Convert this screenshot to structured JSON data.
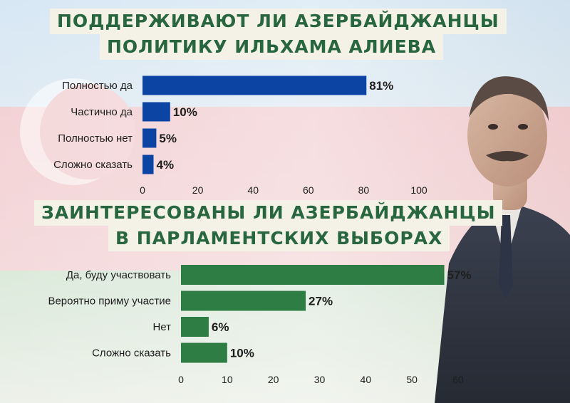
{
  "colors": {
    "blue_bar": "#0b44a3",
    "green_bar": "#2e7d44",
    "title_text": "#27663f"
  },
  "titles": [
    {
      "line1": "ПОДДЕРЖИВАЮТ ЛИ АЗЕРБАЙДЖАНЦЫ",
      "line2": "ПОЛИТИКУ ИЛЬХАМА АЛИЕВА"
    },
    {
      "line1": "ЗАИНТЕРЕСОВАНЫ ЛИ АЗЕРБАЙДЖАНЦЫ",
      "line2": "В ПАРЛАМЕНТСКИХ ВЫБОРАХ"
    }
  ],
  "chart_data": [
    {
      "type": "bar",
      "orientation": "horizontal",
      "title": "ПОДДЕРЖИВАЮТ ЛИ АЗЕРБАЙДЖАНЦЫ ПОЛИТИКУ ИЛЬХАМА АЛИЕВА",
      "categories": [
        "Полностью да",
        "Частично да",
        "Полностью нет",
        "Сложно сказать"
      ],
      "values": [
        81,
        10,
        5,
        4
      ],
      "value_labels": [
        "81%",
        "10%",
        "5%",
        "4%"
      ],
      "xlim": [
        0,
        100
      ],
      "xticks": [
        0,
        20,
        40,
        60,
        80,
        100
      ],
      "grid": false,
      "color": "#0b44a3"
    },
    {
      "type": "bar",
      "orientation": "horizontal",
      "title": "ЗАИНТЕРЕСОВАНЫ ЛИ АЗЕРБАЙДЖАНЦЫ В ПАРЛАМЕНТСКИХ ВЫБОРАХ",
      "categories": [
        "Да, буду участвовать",
        "Вероятно приму участие",
        "Нет",
        "Сложно сказать"
      ],
      "values": [
        57,
        27,
        6,
        10
      ],
      "value_labels": [
        "57%",
        "27%",
        "6%",
        "10%"
      ],
      "xlim": [
        0,
        60
      ],
      "xticks": [
        0,
        10,
        20,
        30,
        40,
        50,
        60
      ],
      "grid": false,
      "color": "#2e7d44"
    }
  ]
}
